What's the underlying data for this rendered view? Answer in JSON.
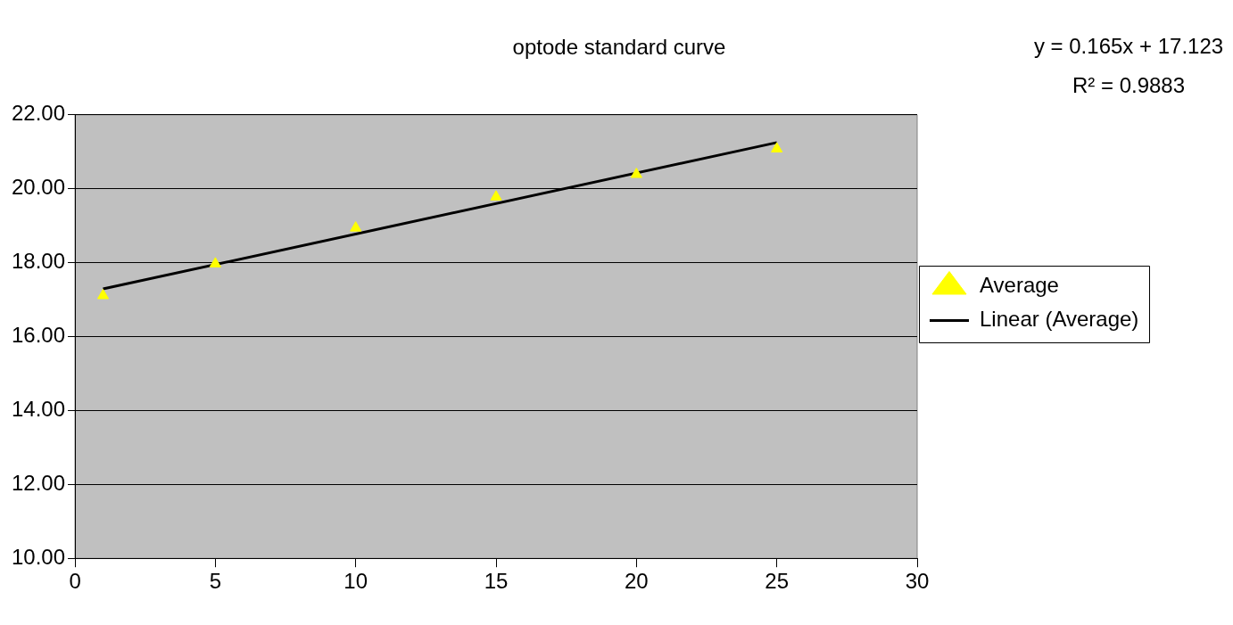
{
  "chart_data": {
    "type": "scatter",
    "title": "optode standard curve",
    "annotations": [
      "y = 0.165x + 17.123",
      "R² = 0.9883"
    ],
    "x": [
      1,
      5,
      10,
      15,
      20,
      25
    ],
    "series": [
      {
        "name": "Average",
        "color": "#ffff00",
        "marker": "triangle",
        "values": [
          17.11,
          17.97,
          18.94,
          19.78,
          20.39,
          21.08
        ]
      },
      {
        "name": "Linear (Average)",
        "type": "line",
        "color": "#000000",
        "marker": "none",
        "x": [
          1,
          25
        ],
        "values": [
          17.29,
          21.25
        ]
      }
    ],
    "xlim": [
      0,
      30
    ],
    "xticks": [
      0,
      5,
      10,
      15,
      20,
      25,
      30
    ],
    "ylim": [
      10,
      22
    ],
    "yticks": [
      {
        "value": 10,
        "label": "10.00"
      },
      {
        "value": 12,
        "label": "12.00"
      },
      {
        "value": 14,
        "label": "14.00"
      },
      {
        "value": 16,
        "label": "16.00"
      },
      {
        "value": 18,
        "label": "18.00"
      },
      {
        "value": 20,
        "label": "20.00"
      },
      {
        "value": 22,
        "label": "22.00"
      }
    ],
    "grid": "y",
    "legend": "right",
    "line_style": "solid"
  }
}
